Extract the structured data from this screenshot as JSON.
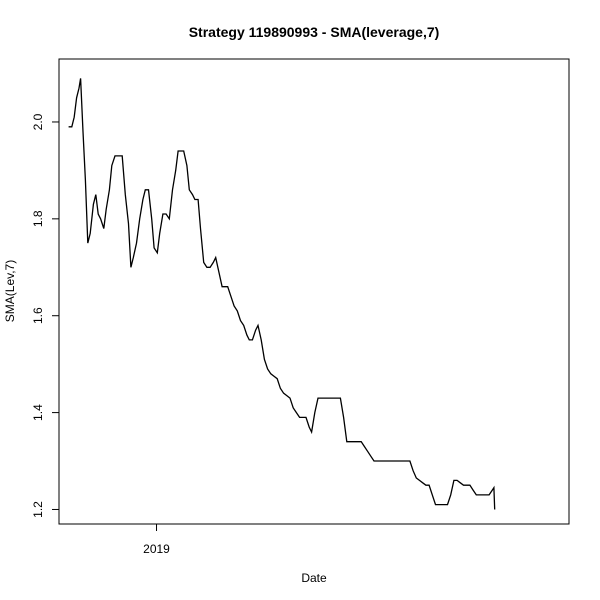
{
  "chart_data": {
    "type": "line",
    "title": "Strategy 119890993 - SMA(leverage,7)",
    "xlabel": "Date",
    "ylabel": "SMA(Lev,7)",
    "xlim": [
      "2018-09-01",
      "2020-05-31"
    ],
    "ylim": [
      1.17,
      2.13
    ],
    "x_ticks": [
      {
        "label": "2019",
        "x": "2019-01-01"
      }
    ],
    "y_ticks": [
      1.2,
      1.4,
      1.6,
      1.8,
      2.0
    ],
    "grid": false,
    "series": [
      {
        "color": "#000000",
        "points": [
          [
            "2018-09-13",
            1.99
          ],
          [
            "2018-09-17",
            1.99
          ],
          [
            "2018-09-20",
            2.01
          ],
          [
            "2018-09-23",
            2.05
          ],
          [
            "2018-09-26",
            2.07
          ],
          [
            "2018-09-28",
            2.09
          ],
          [
            "2018-10-01",
            1.98
          ],
          [
            "2018-10-04",
            1.88
          ],
          [
            "2018-10-07",
            1.75
          ],
          [
            "2018-10-10",
            1.77
          ],
          [
            "2018-10-14",
            1.83
          ],
          [
            "2018-10-17",
            1.85
          ],
          [
            "2018-10-20",
            1.81
          ],
          [
            "2018-10-23",
            1.8
          ],
          [
            "2018-10-27",
            1.78
          ],
          [
            "2018-10-30",
            1.82
          ],
          [
            "2018-11-03",
            1.86
          ],
          [
            "2018-11-06",
            1.91
          ],
          [
            "2018-11-10",
            1.93
          ],
          [
            "2018-11-14",
            1.93
          ],
          [
            "2018-11-19",
            1.93
          ],
          [
            "2018-11-23",
            1.85
          ],
          [
            "2018-11-27",
            1.79
          ],
          [
            "2018-11-30",
            1.7
          ],
          [
            "2018-12-03",
            1.72
          ],
          [
            "2018-12-07",
            1.75
          ],
          [
            "2018-12-11",
            1.8
          ],
          [
            "2018-12-15",
            1.84
          ],
          [
            "2018-12-18",
            1.86
          ],
          [
            "2018-12-22",
            1.86
          ],
          [
            "2018-12-26",
            1.8
          ],
          [
            "2018-12-29",
            1.74
          ],
          [
            "2019-01-02",
            1.73
          ],
          [
            "2019-01-05",
            1.77
          ],
          [
            "2019-01-09",
            1.81
          ],
          [
            "2019-01-13",
            1.81
          ],
          [
            "2019-01-17",
            1.8
          ],
          [
            "2019-01-21",
            1.86
          ],
          [
            "2019-01-25",
            1.9
          ],
          [
            "2019-01-28",
            1.94
          ],
          [
            "2019-02-04",
            1.94
          ],
          [
            "2019-02-08",
            1.91
          ],
          [
            "2019-02-11",
            1.86
          ],
          [
            "2019-02-15",
            1.85
          ],
          [
            "2019-02-18",
            1.84
          ],
          [
            "2019-02-22",
            1.84
          ],
          [
            "2019-02-25",
            1.78
          ],
          [
            "2019-03-01",
            1.71
          ],
          [
            "2019-03-05",
            1.7
          ],
          [
            "2019-03-09",
            1.7
          ],
          [
            "2019-03-13",
            1.71
          ],
          [
            "2019-03-16",
            1.72
          ],
          [
            "2019-03-20",
            1.69
          ],
          [
            "2019-03-24",
            1.66
          ],
          [
            "2019-03-31",
            1.66
          ],
          [
            "2019-04-04",
            1.64
          ],
          [
            "2019-04-08",
            1.62
          ],
          [
            "2019-04-12",
            1.61
          ],
          [
            "2019-04-16",
            1.59
          ],
          [
            "2019-04-20",
            1.58
          ],
          [
            "2019-04-24",
            1.56
          ],
          [
            "2019-04-27",
            1.55
          ],
          [
            "2019-05-01",
            1.55
          ],
          [
            "2019-05-05",
            1.57
          ],
          [
            "2019-05-08",
            1.58
          ],
          [
            "2019-05-12",
            1.55
          ],
          [
            "2019-05-16",
            1.51
          ],
          [
            "2019-05-20",
            1.49
          ],
          [
            "2019-05-24",
            1.48
          ],
          [
            "2019-05-28",
            1.475
          ],
          [
            "2019-06-01",
            1.47
          ],
          [
            "2019-06-05",
            1.45
          ],
          [
            "2019-06-09",
            1.44
          ],
          [
            "2019-06-13",
            1.435
          ],
          [
            "2019-06-17",
            1.43
          ],
          [
            "2019-06-21",
            1.41
          ],
          [
            "2019-06-25",
            1.4
          ],
          [
            "2019-06-29",
            1.39
          ],
          [
            "2019-07-07",
            1.39
          ],
          [
            "2019-07-11",
            1.37
          ],
          [
            "2019-07-14",
            1.36
          ],
          [
            "2019-07-18",
            1.4
          ],
          [
            "2019-07-22",
            1.43
          ],
          [
            "2019-08-19",
            1.43
          ],
          [
            "2019-08-23",
            1.39
          ],
          [
            "2019-08-27",
            1.34
          ],
          [
            "2019-09-14",
            1.34
          ],
          [
            "2019-09-18",
            1.33
          ],
          [
            "2019-09-22",
            1.32
          ],
          [
            "2019-09-26",
            1.31
          ],
          [
            "2019-09-30",
            1.3
          ],
          [
            "2019-11-14",
            1.3
          ],
          [
            "2019-11-18",
            1.28
          ],
          [
            "2019-11-22",
            1.265
          ],
          [
            "2019-11-26",
            1.26
          ],
          [
            "2019-11-30",
            1.255
          ],
          [
            "2019-12-04",
            1.25
          ],
          [
            "2019-12-08",
            1.25
          ],
          [
            "2019-12-12",
            1.23
          ],
          [
            "2019-12-16",
            1.21
          ],
          [
            "2019-12-31",
            1.21
          ],
          [
            "2020-01-04",
            1.23
          ],
          [
            "2020-01-08",
            1.26
          ],
          [
            "2020-01-12",
            1.26
          ],
          [
            "2020-01-16",
            1.255
          ],
          [
            "2020-01-20",
            1.25
          ],
          [
            "2020-01-28",
            1.25
          ],
          [
            "2020-02-01",
            1.24
          ],
          [
            "2020-02-05",
            1.23
          ],
          [
            "2020-02-21",
            1.23
          ],
          [
            "2020-02-25",
            1.24
          ],
          [
            "2020-02-27",
            1.245
          ],
          [
            "2020-02-28",
            1.2
          ]
        ]
      }
    ]
  }
}
